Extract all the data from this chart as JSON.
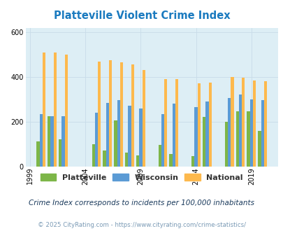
{
  "title": "Platteville Violent Crime Index",
  "title_color": "#1a7abf",
  "years": [
    2000,
    2001,
    2002,
    2005,
    2006,
    2007,
    2008,
    2009,
    2011,
    2012,
    2014,
    2015,
    2017,
    2018,
    2019,
    2020
  ],
  "platteville": [
    110,
    225,
    120,
    100,
    70,
    205,
    60,
    50,
    95,
    55,
    45,
    220,
    200,
    245,
    245,
    160
  ],
  "wisconsin": [
    235,
    225,
    225,
    240,
    285,
    295,
    270,
    260,
    235,
    280,
    265,
    290,
    305,
    320,
    300,
    295
  ],
  "national": [
    510,
    510,
    500,
    470,
    475,
    465,
    455,
    430,
    390,
    390,
    370,
    375,
    400,
    395,
    385,
    380
  ],
  "platteville_color": "#7db648",
  "wisconsin_color": "#5b9bd5",
  "national_color": "#fdb94d",
  "bg_color": "#ddeef5",
  "bar_width": 0.27,
  "ylim": [
    0,
    620
  ],
  "yticks": [
    0,
    200,
    400,
    600
  ],
  "xtick_years": [
    1999,
    2004,
    2009,
    2014,
    2019
  ],
  "xlabel": "",
  "ylabel": "",
  "subtitle": "Crime Index corresponds to incidents per 100,000 inhabitants",
  "footer": "© 2025 CityRating.com - https://www.cityrating.com/crime-statistics/",
  "subtitle_color": "#1a3a5c",
  "footer_color": "#7a9ab5",
  "legend_labels": [
    "Platteville",
    "Wisconsin",
    "National"
  ]
}
